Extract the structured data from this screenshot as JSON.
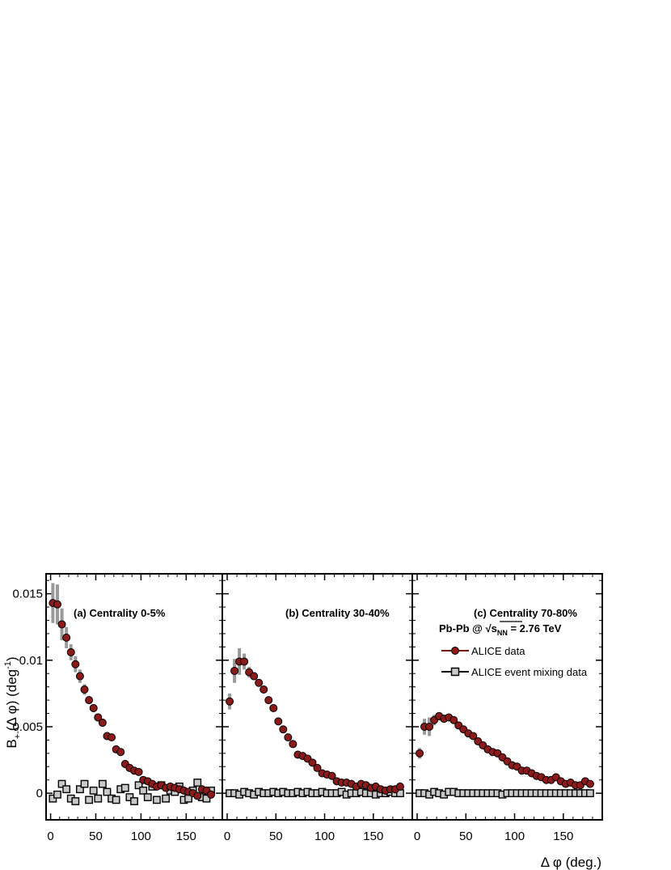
{
  "chart_data": [
    {
      "type": "scatter",
      "title": "(a)  Centrality 0-5%",
      "xlim": [
        -5,
        190
      ],
      "ylim": [
        -0.002,
        0.0165
      ],
      "series": [
        {
          "name": "ALICE data",
          "x": [
            2.5,
            7.5,
            12.5,
            17.5,
            22.5,
            27.5,
            32.5,
            37.5,
            42.5,
            47.5,
            52.5,
            57.5,
            62.5,
            67.5,
            72.5,
            77.5,
            82.5,
            87.5,
            92.5,
            97.5,
            102.5,
            107.5,
            112.5,
            117.5,
            122.5,
            127.5,
            132.5,
            137.5,
            142.5,
            147.5,
            152.5,
            157.5,
            162.5,
            167.5,
            172.5,
            177.5
          ],
          "y": [
            0.0143,
            0.0142,
            0.0127,
            0.0117,
            0.0106,
            0.0097,
            0.0088,
            0.0078,
            0.007,
            0.0064,
            0.0057,
            0.0053,
            0.0043,
            0.0042,
            0.0033,
            0.0031,
            0.0022,
            0.0019,
            0.0017,
            0.0016,
            0.001,
            0.0009,
            0.0007,
            0.0005,
            0.0006,
            0.0004,
            0.0005,
            0.0004,
            0.0003,
            0.0002,
            0.0001,
            0.0,
            -0.0002,
            0.0003,
            0.0002,
            -0.0001
          ],
          "err": [
            0.0015,
            0.0015,
            0.0012,
            0.0008,
            0.0006,
            0.0006,
            0.0005,
            0.0004,
            0.0003,
            0.0003,
            0.0003,
            0.0003,
            0.0003,
            0.0002,
            0.0002,
            0.0002,
            0.0002,
            0.0002,
            0.0002,
            0.0002,
            0.0002,
            0.0002,
            0.0002,
            0.0002,
            0.0002,
            0.0002,
            0.0002,
            0.0002,
            0.0002,
            0.0002,
            0.0002,
            0.0002,
            0.0002,
            0.0002,
            0.0002,
            0.0002
          ]
        },
        {
          "name": "ALICE event mixing data",
          "x": [
            2.5,
            7.5,
            12.5,
            17.5,
            22.5,
            27.5,
            32.5,
            37.5,
            42.5,
            47.5,
            52.5,
            57.5,
            62.5,
            67.5,
            72.5,
            77.5,
            82.5,
            87.5,
            92.5,
            97.5,
            102.5,
            107.5,
            112.5,
            117.5,
            122.5,
            127.5,
            132.5,
            137.5,
            142.5,
            147.5,
            152.5,
            157.5,
            162.5,
            167.5,
            172.5,
            177.5
          ],
          "y": [
            -0.0004,
            -0.0001,
            0.0007,
            0.0003,
            -0.0004,
            -0.0006,
            0.0003,
            0.0007,
            -0.0005,
            0.0002,
            -0.0004,
            0.0007,
            0.0001,
            -0.0004,
            -0.0005,
            0.0003,
            0.0004,
            -0.0003,
            -0.0006,
            0.0006,
            0.0002,
            -0.0003,
            0.0005,
            -0.0005,
            0.0006,
            -0.0004,
            0.0002,
            0.0001,
            0.0005,
            -0.0005,
            -0.0004,
            0.0002,
            0.0008,
            -0.0003,
            -0.0004,
            0.0002
          ]
        }
      ]
    },
    {
      "type": "scatter",
      "title": "(b) Centrality 30-40%",
      "xlim": [
        -5,
        190
      ],
      "ylim": [
        -0.002,
        0.0165
      ],
      "series": [
        {
          "name": "ALICE data",
          "x": [
            2.5,
            7.5,
            12.5,
            17.5,
            22.5,
            27.5,
            32.5,
            37.5,
            42.5,
            47.5,
            52.5,
            57.5,
            62.5,
            67.5,
            72.5,
            77.5,
            82.5,
            87.5,
            92.5,
            97.5,
            102.5,
            107.5,
            112.5,
            117.5,
            122.5,
            127.5,
            132.5,
            137.5,
            142.5,
            147.5,
            152.5,
            157.5,
            162.5,
            167.5,
            172.5,
            177.5
          ],
          "y": [
            0.0069,
            0.0092,
            0.0099,
            0.0099,
            0.0091,
            0.0088,
            0.0083,
            0.0078,
            0.007,
            0.0064,
            0.0054,
            0.0048,
            0.0042,
            0.0037,
            0.0029,
            0.0028,
            0.0026,
            0.0023,
            0.0019,
            0.0015,
            0.0014,
            0.0013,
            0.0009,
            0.0008,
            0.0008,
            0.0007,
            0.0005,
            0.0007,
            0.0006,
            0.0004,
            0.0005,
            0.0003,
            0.0002,
            0.0003,
            0.0003,
            0.0005
          ],
          "err": [
            0.0006,
            0.0009,
            0.001,
            0.0006,
            0.0004,
            0.0003,
            0.0002,
            0.0002,
            0.0002,
            0.0002,
            0.0002,
            0.0002,
            0.0002,
            0.0002,
            0.0002,
            0.0002,
            0.0002,
            0.0002,
            0.0002,
            0.0002,
            0.0002,
            0.0002,
            0.0002,
            0.0002,
            0.0002,
            0.0002,
            0.0002,
            0.0002,
            0.0002,
            0.0002,
            0.0002,
            0.0002,
            0.0002,
            0.0002,
            0.0002,
            0.0002
          ]
        },
        {
          "name": "ALICE event mixing data",
          "x": [
            2.5,
            7.5,
            12.5,
            17.5,
            22.5,
            27.5,
            32.5,
            37.5,
            42.5,
            47.5,
            52.5,
            57.5,
            62.5,
            67.5,
            72.5,
            77.5,
            82.5,
            87.5,
            92.5,
            97.5,
            102.5,
            107.5,
            112.5,
            117.5,
            122.5,
            127.5,
            132.5,
            137.5,
            142.5,
            147.5,
            152.5,
            157.5,
            162.5,
            167.5,
            172.5,
            177.5
          ],
          "y": [
            0.0,
            0.0,
            -0.0001,
            0.0001,
            0.0,
            -0.0001,
            0.0001,
            0.0,
            0.0,
            0.0001,
            0.0,
            0.0001,
            0.0,
            0.0,
            0.0001,
            0.0,
            0.0001,
            0.0,
            0.0,
            0.0001,
            0.0,
            0.0,
            0.0,
            0.0001,
            -0.0001,
            0.0,
            0.0,
            0.0001,
            0.0,
            0.0,
            -0.0001,
            0.0,
            0.0,
            0.0001,
            0.0,
            0.0
          ]
        }
      ]
    },
    {
      "type": "scatter",
      "title": "(c) Centrality 70-80%",
      "subtitle_parts": {
        "prefix": "Pb-Pb @ ",
        "sqrt_symbol": "√",
        "var": "s",
        "subscript": "NN",
        "suffix": " = 2.76 TeV"
      },
      "xlim": [
        -5,
        190
      ],
      "ylim": [
        -0.002,
        0.0165
      ],
      "legend": {
        "position": "top-right",
        "entries": [
          "ALICE data",
          "ALICE event mixing data"
        ]
      },
      "series": [
        {
          "name": "ALICE data",
          "x": [
            2.5,
            7.5,
            12.5,
            17.5,
            22.5,
            27.5,
            32.5,
            37.5,
            42.5,
            47.5,
            52.5,
            57.5,
            62.5,
            67.5,
            72.5,
            77.5,
            82.5,
            87.5,
            92.5,
            97.5,
            102.5,
            107.5,
            112.5,
            117.5,
            122.5,
            127.5,
            132.5,
            137.5,
            142.5,
            147.5,
            152.5,
            157.5,
            162.5,
            167.5,
            172.5,
            177.5
          ],
          "y": [
            0.003,
            0.005,
            0.005,
            0.0055,
            0.0058,
            0.0056,
            0.0057,
            0.0055,
            0.0051,
            0.0048,
            0.0045,
            0.0043,
            0.0039,
            0.0036,
            0.0033,
            0.0031,
            0.003,
            0.0027,
            0.0024,
            0.0021,
            0.002,
            0.0017,
            0.0017,
            0.0015,
            0.0013,
            0.0012,
            0.001,
            0.001,
            0.0012,
            0.0009,
            0.0007,
            0.0008,
            0.0006,
            0.0006,
            0.0009,
            0.0007
          ],
          "err": [
            0.0004,
            0.0006,
            0.0007,
            0.0004,
            0.0003,
            0.0003,
            0.0002,
            0.0002,
            0.0002,
            0.0002,
            0.0002,
            0.0002,
            0.0002,
            0.0002,
            0.0002,
            0.0002,
            0.0002,
            0.0002,
            0.0002,
            0.0002,
            0.0002,
            0.0002,
            0.0002,
            0.0002,
            0.0002,
            0.0002,
            0.0002,
            0.0002,
            0.0002,
            0.0002,
            0.0002,
            0.0002,
            0.0002,
            0.0002,
            0.0002,
            0.0002
          ]
        },
        {
          "name": "ALICE event mixing data",
          "x": [
            2.5,
            7.5,
            12.5,
            17.5,
            22.5,
            27.5,
            32.5,
            37.5,
            42.5,
            47.5,
            52.5,
            57.5,
            62.5,
            67.5,
            72.5,
            77.5,
            82.5,
            87.5,
            92.5,
            97.5,
            102.5,
            107.5,
            112.5,
            117.5,
            122.5,
            127.5,
            132.5,
            137.5,
            142.5,
            147.5,
            152.5,
            157.5,
            162.5,
            167.5,
            172.5,
            177.5
          ],
          "y": [
            0.0,
            0.0,
            -0.0001,
            0.0001,
            0.0,
            -0.0001,
            0.0001,
            0.0001,
            0.0,
            0.0,
            0.0,
            0.0,
            0.0,
            0.0,
            0.0,
            0.0,
            0.0,
            -0.0001,
            0.0,
            0.0,
            0.0,
            0.0,
            0.0,
            0.0,
            0.0,
            0.0,
            0.0,
            0.0,
            0.0,
            0.0,
            0.0,
            0.0,
            0.0,
            0.0,
            0.0,
            0.0
          ]
        }
      ]
    }
  ],
  "axes": {
    "y_title": {
      "base": "B",
      "sub": "+-",
      "middle": "(Δ φ) (deg",
      "sup": "-1",
      "end": ")"
    },
    "x_title": "Δ φ (deg.)",
    "y_ticks": [
      {
        "value": 0,
        "label": "0"
      },
      {
        "value": 0.005,
        "label": "0.005"
      },
      {
        "value": 0.01,
        "label": "0.01"
      },
      {
        "value": 0.015,
        "label": "0.015"
      }
    ],
    "x_ticks": [
      {
        "value": 0,
        "label": "0"
      },
      {
        "value": 50,
        "label": "50"
      },
      {
        "value": 100,
        "label": "100"
      },
      {
        "value": 150,
        "label": "150"
      }
    ]
  },
  "colors": {
    "data_fill": "#8b1a1a",
    "data_line": "#7a0f0f",
    "error_bar": "#9a9a9a",
    "mixing_fill": "#c8c8c8",
    "frame": "#000000"
  }
}
